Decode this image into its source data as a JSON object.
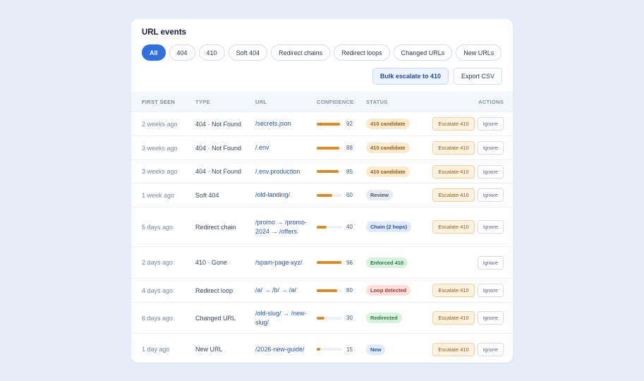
{
  "card": {
    "title": "URL events"
  },
  "filters": [
    "All",
    "404",
    "410",
    "Soft 404",
    "Redirect chains",
    "Redirect loops",
    "Changed URLs",
    "New URLs"
  ],
  "toolbar": {
    "bulk_label": "Bulk escalate to 410",
    "export_label": "Export CSV"
  },
  "table": {
    "headers": {
      "first_seen": "FIRST SEEN",
      "type": "TYPE",
      "url": "URL",
      "confidence": "CONFIDENCE",
      "status": "STATUS",
      "actions": "ACTIONS"
    },
    "rows": [
      {
        "first_seen": "2 weeks ago",
        "type": "404 · Not Found",
        "url": "/secrets.json",
        "confidence": 92,
        "confidence_label": "92",
        "status": "410 candidate",
        "status_kind": "candidate",
        "escalate": "Escalate 410",
        "ignore": "Ignore"
      },
      {
        "first_seen": "3 weeks ago",
        "type": "404 · Not Found",
        "url": "/.env",
        "confidence": 88,
        "confidence_label": "88",
        "status": "410 candidate",
        "status_kind": "candidate",
        "escalate": "Escalate 410",
        "ignore": "Ignore"
      },
      {
        "first_seen": "3 weeks ago",
        "type": "404 · Not Found",
        "url": "/.env.production",
        "confidence": 85,
        "confidence_label": "85",
        "status": "410 candidate",
        "status_kind": "candidate",
        "escalate": "Escalate 410",
        "ignore": "Ignore"
      },
      {
        "first_seen": "1 week ago",
        "type": "Soft 404",
        "url": "/old-landing/",
        "confidence": 60,
        "confidence_label": "60",
        "status": "Review",
        "status_kind": "review",
        "escalate": "Escalate 410",
        "ignore": "Ignore"
      },
      {
        "first_seen": "5 days ago",
        "type": "Redirect chain",
        "url": "/promo → /promo-2024 → /offers",
        "confidence": 40,
        "confidence_label": "40",
        "status": "Chain (2 hops)",
        "status_kind": "chain",
        "escalate": "Escalate 410",
        "ignore": "Ignore"
      },
      {
        "first_seen": "2 days ago",
        "type": "410 · Gone",
        "url": "/spam-page-xyz/",
        "confidence": 96,
        "confidence_label": "96",
        "status": "Enforced 410",
        "status_kind": "enforced",
        "escalate": "",
        "ignore": "Ignore"
      },
      {
        "first_seen": "4 days ago",
        "type": "Redirect loop",
        "url": "/a/ → /b/ → /a/",
        "confidence": 80,
        "confidence_label": "80",
        "status": "Loop detected",
        "status_kind": "loop",
        "escalate": "Escalate 410",
        "ignore": "Ignore"
      },
      {
        "first_seen": "6 days ago",
        "type": "Changed URL",
        "url": "/old-slug/ → /new-slug/",
        "confidence": 30,
        "confidence_label": "30",
        "status": "Redirected",
        "status_kind": "redirected",
        "escalate": "Escalate 410",
        "ignore": "Ignore"
      },
      {
        "first_seen": "1 day ago",
        "type": "New URL",
        "url": "/2026-new-guide/",
        "confidence": 15,
        "confidence_label": "15",
        "status": "New",
        "status_kind": "new",
        "escalate": "Escalate 410",
        "ignore": "Ignore"
      }
    ]
  },
  "colors": {
    "accent": "#2f6fe0",
    "confidence_bar": "#dc8a22",
    "background": "#e6edf7"
  }
}
